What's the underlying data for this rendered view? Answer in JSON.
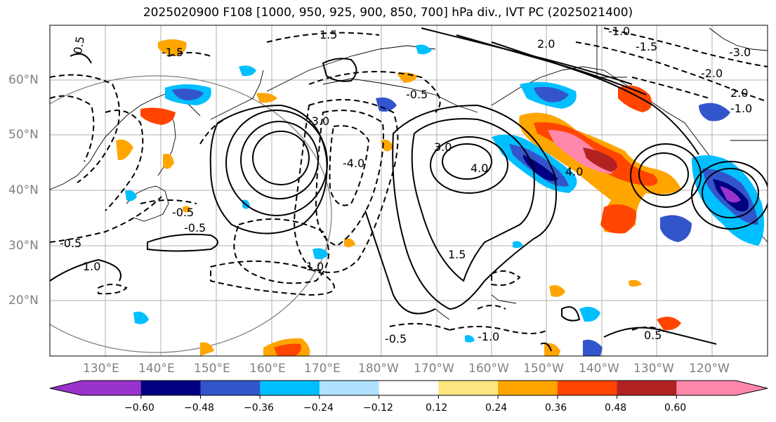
{
  "title": "2025020900 F108 [1000, 950, 925, 900, 850, 700] hPa div., IVT PC (2025021400)",
  "lat_labels": [
    "60°N",
    "50°N",
    "40°N",
    "30°N",
    "20°N"
  ],
  "lon_labels": [
    "130°E",
    "140°E",
    "150°E",
    "160°E",
    "170°E",
    "180°W",
    "170°W",
    "160°W",
    "150°W",
    "140°W",
    "130°W",
    "120°W"
  ],
  "colorbar": {
    "ticks": [
      "−0.60",
      "−0.48",
      "−0.36",
      "−0.24",
      "−0.12",
      "0.12",
      "0.24",
      "0.36",
      "0.48",
      "0.60"
    ],
    "colors": [
      "#9933cc",
      "#000080",
      "#3355cc",
      "#00bfff",
      "#b0e2ff",
      "#ffffff",
      "#ffe680",
      "#ffa500",
      "#ff4500",
      "#b22222",
      "#ff88aa"
    ]
  },
  "contour_labels": [
    "0.5",
    "-1.5",
    "1.5",
    "2.0",
    "-1.0",
    "-1.5",
    "-0.5",
    "-3.0",
    "4.0",
    "-4.0",
    "3.0",
    "1.5",
    "-0.5",
    "1.0",
    "-1.0",
    "-0.5",
    "-1.0",
    "0.5",
    "-0.5",
    "-3.0",
    "-2.0",
    "2.0",
    "-1.0",
    "-0.5",
    "4.0"
  ]
}
